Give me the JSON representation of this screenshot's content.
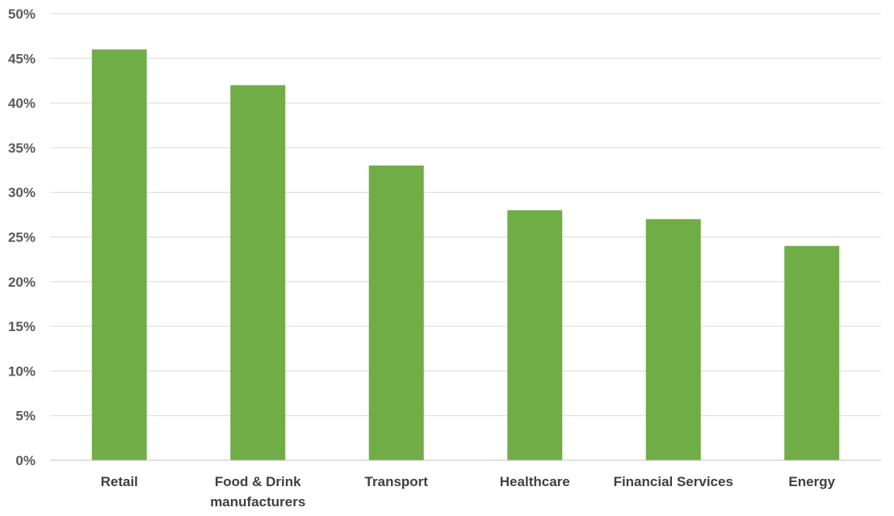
{
  "chart_data": {
    "type": "bar",
    "categories": [
      "Retail",
      "Food & Drink manufacturers",
      "Transport",
      "Healthcare",
      "Financial Services",
      "Energy"
    ],
    "category_lines": [
      [
        "Retail"
      ],
      [
        "Food & Drink",
        "manufacturers"
      ],
      [
        "Transport"
      ],
      [
        "Healthcare"
      ],
      [
        "Financial Services"
      ],
      [
        "Energy"
      ]
    ],
    "values": [
      46,
      42,
      33,
      28,
      27,
      24
    ],
    "ylim": [
      0,
      50
    ],
    "ytick_step": 5,
    "ytick_labels": [
      "0%",
      "5%",
      "10%",
      "15%",
      "20%",
      "25%",
      "30%",
      "35%",
      "40%",
      "45%",
      "50%"
    ],
    "grid": true,
    "legend": "none",
    "bar_color": "#70ad47",
    "title": "",
    "xlabel": "",
    "ylabel": ""
  }
}
